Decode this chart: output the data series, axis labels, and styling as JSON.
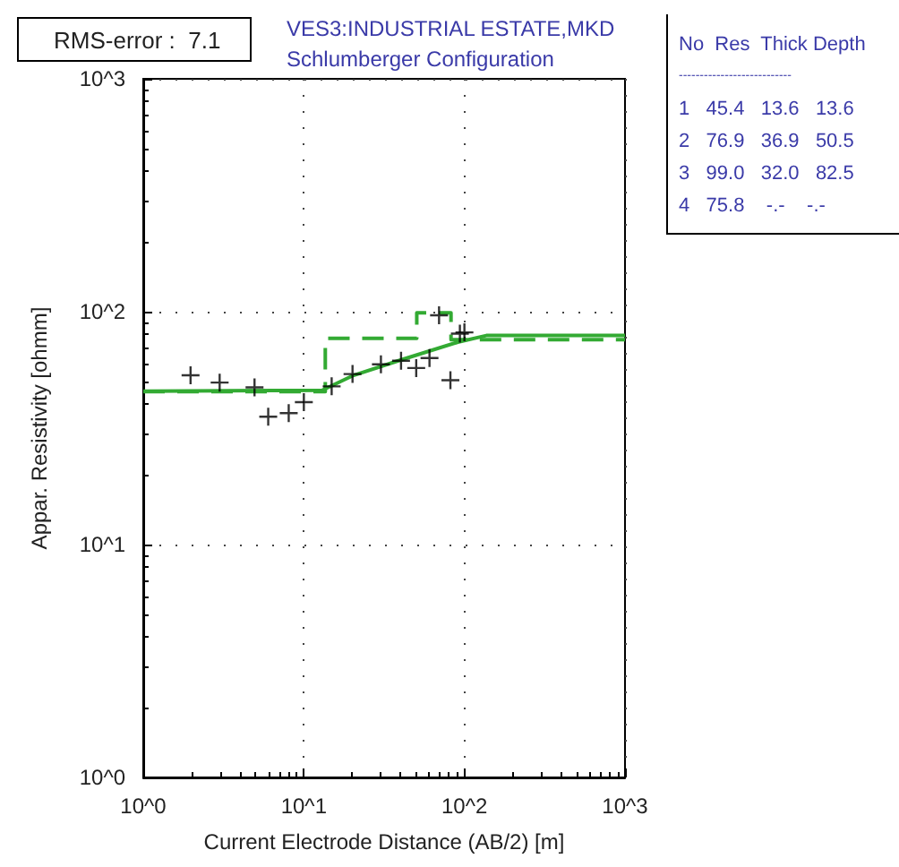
{
  "chart_data": [
    {
      "type": "line",
      "title": "VES3:INDUSTRIAL ESTATE,MKD",
      "subtitle": "Schlumberger Configuration",
      "xlabel": "Current Electrode Distance (AB/2) [m]",
      "ylabel": "Appar. Resistivity [ohmm]",
      "annotations": [
        "RMS-error :  7.1"
      ],
      "log": "xy",
      "grid": "dotted",
      "xlim": [
        1,
        1000
      ],
      "ylim": [
        1,
        1000
      ],
      "xticks": [
        {
          "value": 1,
          "label": "10^0"
        },
        {
          "value": 10,
          "label": "10^1"
        },
        {
          "value": 100,
          "label": "10^2"
        },
        {
          "value": 1000,
          "label": "10^3"
        }
      ],
      "yticks": [
        {
          "value": 1,
          "label": "10^0"
        },
        {
          "value": 10,
          "label": "10^1"
        },
        {
          "value": 100,
          "label": "10^2"
        },
        {
          "value": 1000,
          "label": "10^3"
        }
      ],
      "series": [
        {
          "type": "scatter",
          "color": "#000000",
          "marker": "cross",
          "x": [
            1.97,
            2.99,
            4.93,
            6.0,
            8.05,
            10.0,
            14.9,
            20.1,
            30.2,
            40.3,
            50.1,
            60.6,
            69.5,
            81.8,
            93.7,
            100
          ],
          "values": [
            53.3,
            49.6,
            47.3,
            35.4,
            36.7,
            40.9,
            47.8,
            54,
            59.4,
            61.6,
            57.3,
            63.2,
            96.5,
            50.8,
            80.5,
            81.5
          ]
        },
        {
          "type": "line",
          "color": "#33aa33",
          "marker": "none",
          "line_style": "solid",
          "x": [
            1,
            13,
            20,
            40,
            91,
            137,
            1000
          ],
          "values": [
            45.6,
            46,
            53,
            62,
            74,
            79,
            79
          ]
        },
        {
          "type": "step",
          "color": "#33aa33",
          "marker": "none",
          "line_style": "dashed",
          "x": [
            1,
            13.6,
            50.5,
            82.5,
            1000
          ],
          "values": [
            45.4,
            76.9,
            99.0,
            75.8,
            75.8
          ]
        }
      ]
    },
    {
      "type": "other",
      "annotations": [
        "No  Res  Thick Depth",
        "---------------------------",
        "1   45.4   13.6   13.6",
        "2   76.9   36.9   50.5",
        "3   99.0   32.0   82.5",
        "4   75.8    -.-    -.-"
      ]
    }
  ]
}
